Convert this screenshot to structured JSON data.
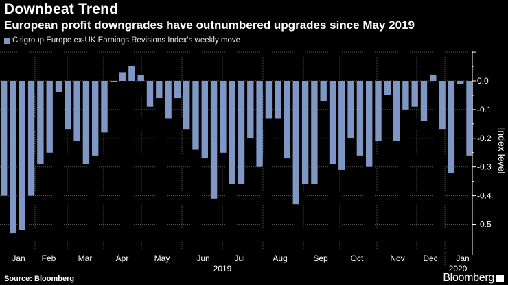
{
  "header": {
    "title": "Downbeat Trend",
    "subtitle": "European profit downgrades have outnumbered upgrades since May 2019"
  },
  "footer": {
    "source": "Source: Bloomberg",
    "brand": "Bloomberg"
  },
  "colors": {
    "bar": "#7e97c4",
    "background": "#000000"
  },
  "chart_data": {
    "type": "bar",
    "title": "Downbeat Trend",
    "subtitle": "European profit downgrades have outnumbered upgrades since May 2019",
    "legend": [
      "Citigroup Europe ex-UK Earnings Revisions Index's weekly move"
    ],
    "legend_position": "top-left",
    "ylabel": "Index level",
    "ylim": [
      -0.54,
      0.1
    ],
    "y_ticks": [
      0.0,
      -0.1,
      -0.2,
      -0.3,
      -0.4,
      -0.5
    ],
    "y_tick_labels": [
      "0.0",
      "-0.1",
      "-0.2",
      "-0.3",
      "-0.4",
      "-0.5"
    ],
    "x_month_labels": [
      "Jan",
      "Feb",
      "Mar",
      "Apr",
      "May",
      "Jun",
      "Jul",
      "Aug",
      "Sep",
      "Oct",
      "Nov",
      "Dec",
      "Jan"
    ],
    "x_year_labels": [
      "2019",
      "2020"
    ],
    "grid": true,
    "series": [
      {
        "name": "Citigroup Europe ex-UK Earnings Revisions Index's weekly move",
        "values": [
          -0.4,
          -0.53,
          -0.52,
          -0.4,
          -0.29,
          -0.25,
          -0.04,
          -0.17,
          -0.21,
          -0.29,
          -0.26,
          -0.18,
          0.0,
          0.03,
          0.05,
          0.02,
          -0.09,
          -0.06,
          -0.13,
          -0.06,
          -0.17,
          -0.24,
          -0.27,
          -0.41,
          -0.25,
          -0.36,
          -0.36,
          -0.2,
          -0.3,
          -0.13,
          -0.13,
          -0.27,
          -0.43,
          -0.36,
          -0.36,
          -0.07,
          -0.29,
          -0.31,
          -0.2,
          -0.26,
          -0.3,
          -0.21,
          -0.05,
          -0.21,
          -0.1,
          -0.09,
          -0.14,
          0.02,
          -0.17,
          -0.32,
          -0.01,
          -0.26
        ]
      }
    ]
  }
}
